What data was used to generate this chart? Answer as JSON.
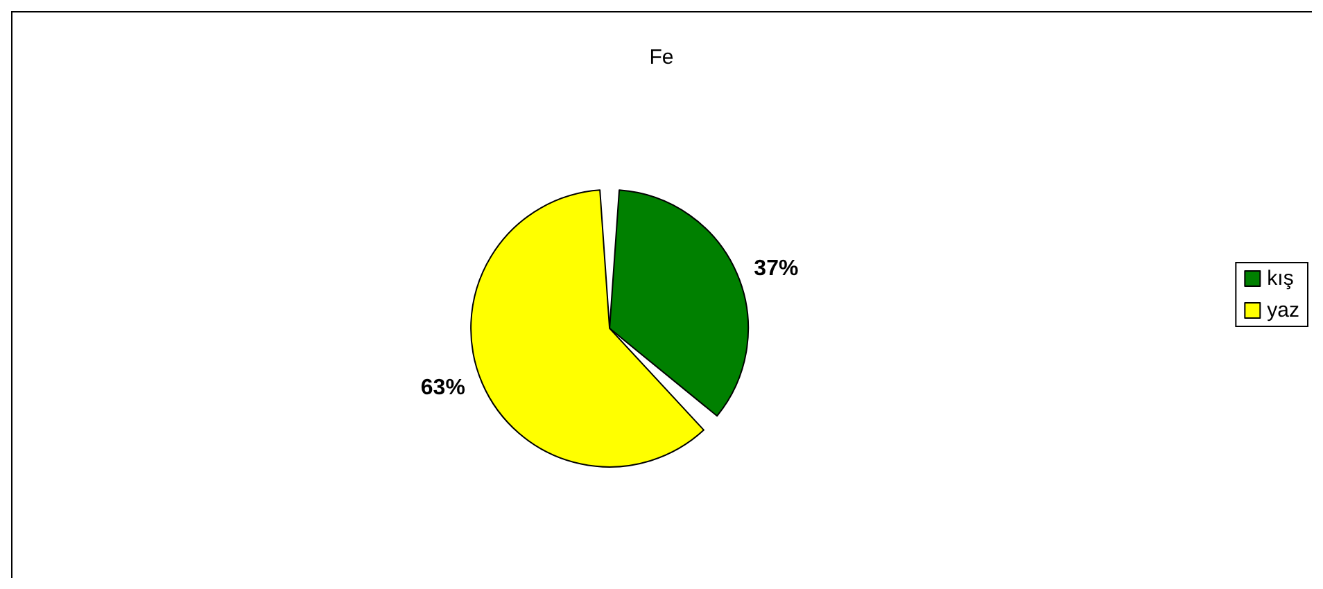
{
  "chart_data": {
    "type": "pie",
    "title": "Fe",
    "categories": [
      "kış",
      "yaz"
    ],
    "values": [
      37,
      63
    ],
    "colors": [
      "#008000",
      "#ffff00"
    ],
    "value_labels": [
      "37%",
      "63%"
    ],
    "legend": "right"
  }
}
